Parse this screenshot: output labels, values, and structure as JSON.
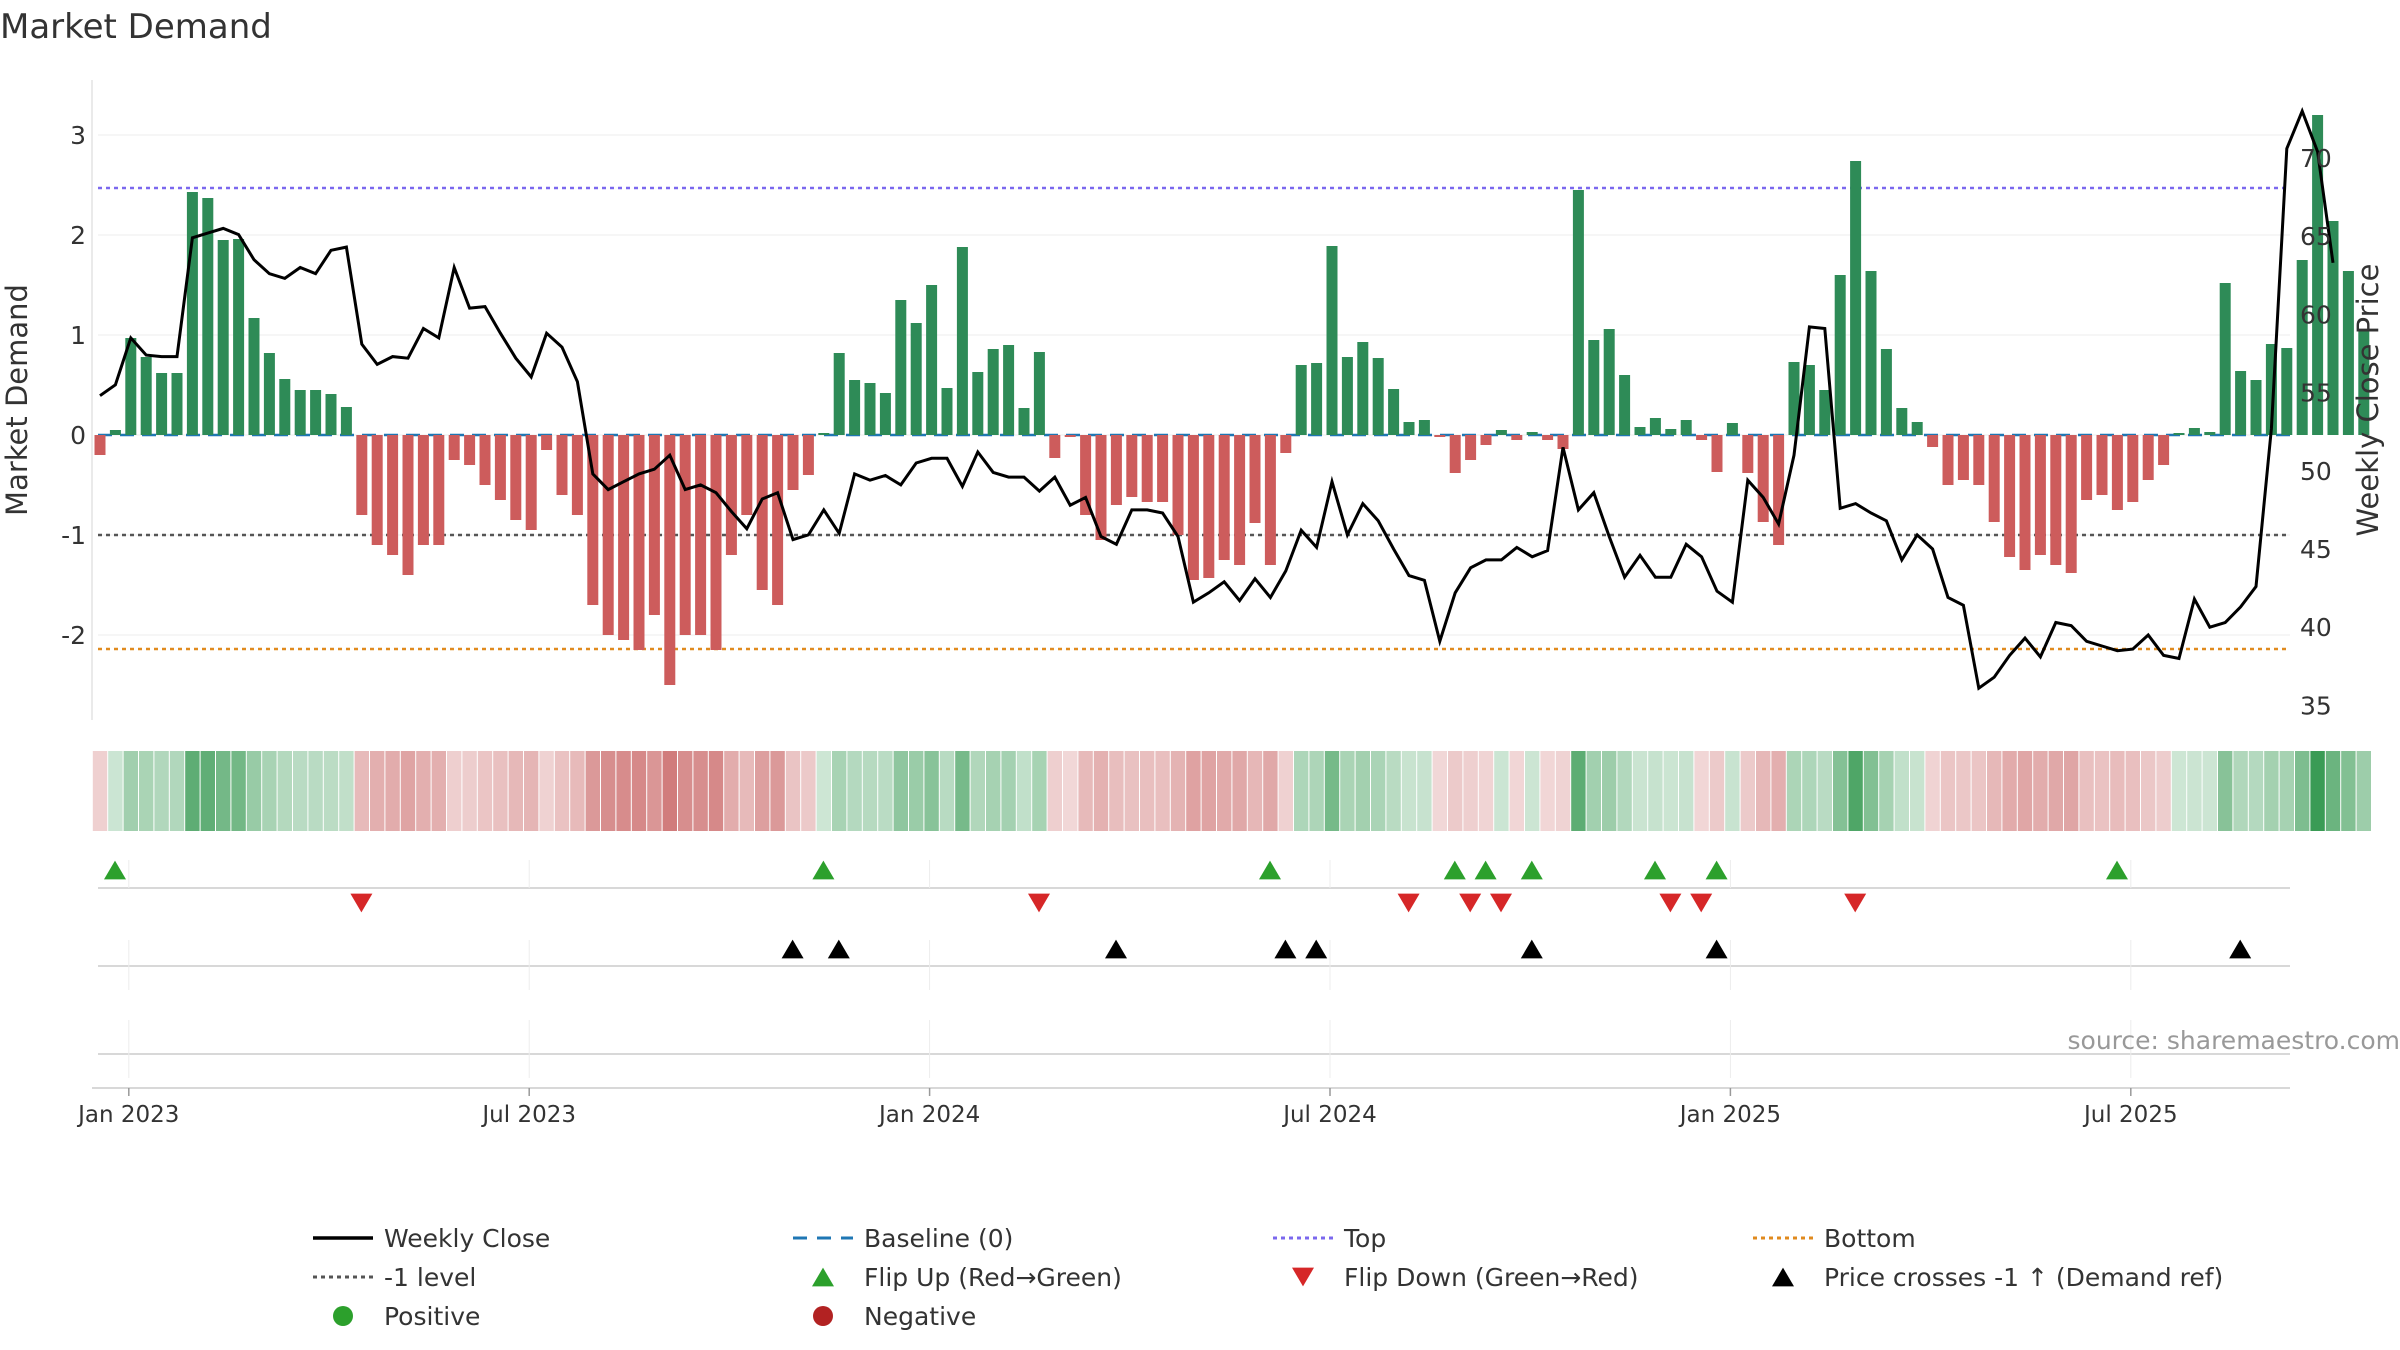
{
  "chart_data": {
    "type": "bar+line",
    "title": "Market Demand",
    "ylabel_left": "Market Demand",
    "ylabel_right": "Weekly Close Price",
    "source": "source: sharemaestro.com",
    "left_ylim": [
      -2.85,
      3.3
    ],
    "left_yticks": [
      3,
      2,
      1,
      0,
      -1,
      -2
    ],
    "right_ylim": [
      34.2,
      73.5
    ],
    "right_yticks": [
      70,
      65,
      60,
      55,
      50,
      45,
      40,
      35
    ],
    "x_ticks": [
      "Jan 2023",
      "Jul 2023",
      "Jan 2024",
      "Jul 2024",
      "Jan 2025",
      "Jul 2025"
    ],
    "x_tick_week_index": [
      2,
      28,
      54,
      80,
      106,
      132
    ],
    "levels": {
      "top": 2.47,
      "bottom": -2.14,
      "minus_one": -1,
      "baseline": 0
    },
    "colors": {
      "positive_bar": "#2e8b57",
      "negative_bar": "#cd5c5c",
      "close_line": "#000000",
      "baseline": "#1f77b4",
      "top": "#7b68ee",
      "minus_one": "#555555",
      "bottom": "#e08a1e",
      "flip_up": "#2ca02c",
      "flip_down": "#d62728",
      "price_cross": "#000000",
      "positive_dot": "#2ca02c",
      "negative_dot": "#b22222"
    },
    "series": [
      {
        "name": "Market Demand",
        "kind": "bar",
        "values": [
          -0.2,
          0.05,
          0.97,
          0.78,
          0.62,
          0.62,
          2.43,
          2.37,
          1.95,
          1.96,
          1.17,
          0.82,
          0.56,
          0.45,
          0.45,
          0.41,
          0.28,
          -0.8,
          -1.1,
          -1.2,
          -1.4,
          -1.1,
          -1.1,
          -0.25,
          -0.3,
          -0.5,
          -0.65,
          -0.85,
          -0.95,
          -0.15,
          -0.6,
          -0.8,
          -1.7,
          -2.0,
          -2.05,
          -2.15,
          -1.8,
          -2.5,
          -2.0,
          -2.0,
          -2.15,
          -1.2,
          -0.8,
          -1.55,
          -1.7,
          -0.55,
          -0.4,
          0.02,
          0.82,
          0.55,
          0.52,
          0.42,
          1.35,
          1.12,
          1.5,
          0.47,
          1.88,
          0.63,
          0.86,
          0.9,
          0.27,
          0.83,
          -0.23,
          -0.02,
          -0.8,
          -1.05,
          -0.7,
          -0.62,
          -0.67,
          -0.67,
          -1.0,
          -1.45,
          -1.43,
          -1.25,
          -1.3,
          -0.88,
          -1.3,
          -0.18,
          0.7,
          0.72,
          1.89,
          0.78,
          0.93,
          0.77,
          0.46,
          0.13,
          0.15,
          -0.02,
          -0.38,
          -0.25,
          -0.1,
          0.05,
          -0.05,
          0.03,
          -0.05,
          -0.14,
          2.45,
          0.95,
          1.06,
          0.6,
          0.08,
          0.17,
          0.06,
          0.15,
          -0.05,
          -0.37,
          0.12,
          -0.38,
          -0.87,
          -1.1,
          0.73,
          0.7,
          0.45,
          1.6,
          2.74,
          1.64,
          0.86,
          0.27,
          0.13,
          -0.12,
          -0.5,
          -0.45,
          -0.5,
          -0.87,
          -1.22,
          -1.35,
          -1.2,
          -1.3,
          -1.38,
          -0.65,
          -0.6,
          -0.75,
          -0.67,
          -0.45,
          -0.3,
          0.02,
          0.07,
          0.03,
          1.52,
          0.64,
          0.55,
          0.91,
          0.87,
          1.75,
          3.2,
          2.14,
          1.64,
          1.06
        ]
      },
      {
        "name": "Weekly Close",
        "kind": "line",
        "axis": "right",
        "values": [
          54.8,
          55.5,
          58.5,
          57.4,
          57.3,
          57.3,
          64.9,
          65.2,
          65.5,
          65.1,
          63.5,
          62.6,
          62.3,
          63.0,
          62.6,
          64.1,
          64.3,
          58.1,
          56.8,
          57.3,
          57.2,
          59.1,
          58.5,
          63.0,
          60.4,
          60.5,
          58.8,
          57.2,
          56.0,
          58.8,
          57.9,
          55.7,
          49.8,
          48.8,
          49.3,
          49.8,
          50.1,
          51.0,
          48.8,
          49.1,
          48.6,
          47.4,
          46.3,
          48.2,
          48.6,
          45.6,
          45.9,
          47.5,
          46.0,
          49.8,
          49.4,
          49.7,
          49.1,
          50.5,
          50.8,
          50.8,
          49.0,
          51.2,
          49.9,
          49.6,
          49.6,
          48.7,
          49.6,
          47.8,
          48.3,
          45.8,
          45.3,
          47.5,
          47.5,
          47.3,
          45.8,
          41.6,
          42.2,
          42.9,
          41.7,
          43.1,
          41.9,
          43.6,
          46.2,
          45.1,
          49.3,
          45.9,
          47.9,
          46.8,
          45.0,
          43.3,
          43.0,
          39.1,
          42.2,
          43.8,
          44.3,
          44.3,
          45.1,
          44.5,
          44.9,
          51.5,
          47.5,
          48.6,
          45.8,
          43.2,
          44.6,
          43.2,
          43.2,
          45.3,
          44.5,
          42.3,
          41.6,
          49.4,
          48.3,
          46.6,
          51.0,
          59.2,
          59.1,
          47.6,
          47.9,
          47.3,
          46.8,
          44.3,
          45.9,
          45.0,
          41.9,
          41.4,
          36.1,
          36.8,
          38.2,
          39.3,
          38.1,
          40.3,
          40.1,
          39.1,
          38.8,
          38.5,
          38.6,
          39.5,
          38.2,
          38.0,
          41.8,
          40.0,
          40.3,
          41.3,
          42.6,
          52.7,
          70.6,
          73.0,
          70.4,
          63.3
        ]
      }
    ],
    "flip_up_weeks": [
      0,
      46,
      75,
      87,
      89,
      92,
      100,
      104,
      130
    ],
    "flip_down_weeks": [
      16,
      60,
      84,
      88,
      90,
      101,
      103,
      113
    ],
    "price_cross_weeks": [
      44,
      47,
      65,
      76,
      78,
      92,
      104,
      138
    ],
    "legend": [
      "Weekly Close",
      "Baseline (0)",
      "Top",
      "Bottom",
      "-1 level",
      "Flip Up (Red→Green)",
      "Flip Down (Green→Red)",
      "Price crosses -1 ↑ (Demand ref)",
      "Positive",
      "Negative"
    ]
  }
}
